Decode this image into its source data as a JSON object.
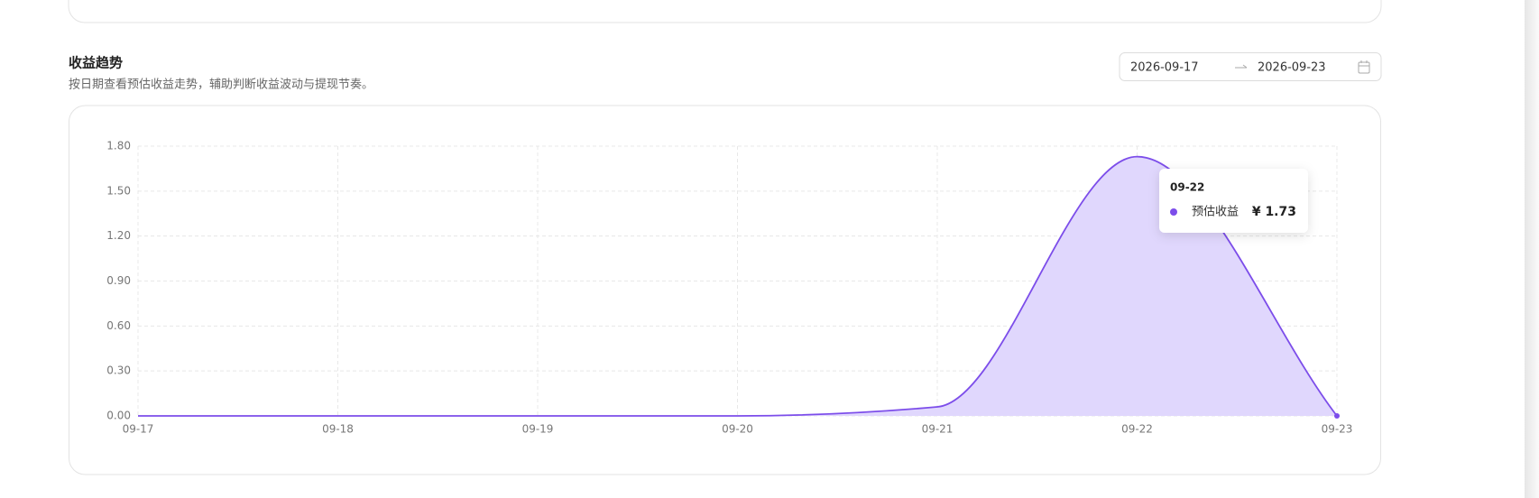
{
  "section": {
    "title": "收益趋势",
    "subtitle": "按日期查看预估收益走势，辅助判断收益波动与提现节奏。"
  },
  "date_range": {
    "start": "2026-09-17",
    "end": "2026-09-23"
  },
  "chart_data": {
    "type": "area",
    "categories": [
      "09-17",
      "09-18",
      "09-19",
      "09-20",
      "09-21",
      "09-22",
      "09-23"
    ],
    "series": [
      {
        "name": "预估收益",
        "color": "#7c4dea",
        "values": [
          0,
          0,
          0,
          0,
          0.06,
          1.73,
          0
        ]
      }
    ],
    "ylim": [
      0,
      1.8
    ],
    "yticks": [
      {
        "value": 0,
        "label": "0.00"
      },
      {
        "value": 0.3,
        "label": "0.30"
      },
      {
        "value": 0.6,
        "label": "0.60"
      },
      {
        "value": 0.9,
        "label": "0.90"
      },
      {
        "value": 1.2,
        "label": "1.20"
      },
      {
        "value": 1.5,
        "label": "1.50"
      },
      {
        "value": 1.8,
        "label": "1.80"
      }
    ],
    "grid": true,
    "tooltip_value_label": "¥ 1.73"
  }
}
